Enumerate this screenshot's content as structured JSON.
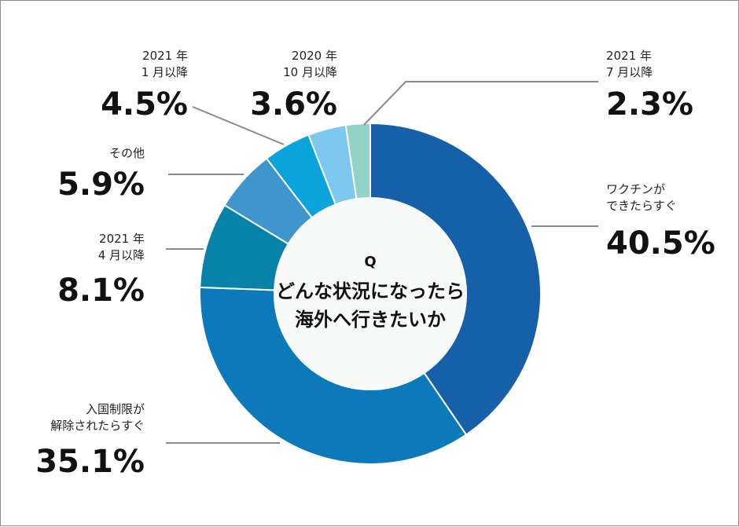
{
  "chart_data": {
    "type": "pie",
    "variant": "donut",
    "center_text": {
      "q": "Q",
      "line1": "どんな状況になったら",
      "line2": "海外へ行きたいか"
    },
    "slices": [
      {
        "label_lines": [
          "ワクチンが",
          "できたらすぐ"
        ],
        "value": 40.5,
        "value_label": "40.5%",
        "color": "#1560a8"
      },
      {
        "label_lines": [
          "入国制限が",
          "解除されたらすぐ"
        ],
        "value": 35.1,
        "value_label": "35.1%",
        "color": "#0b79ba"
      },
      {
        "label_lines": [
          "2021 年",
          "4 月以降"
        ],
        "value": 8.1,
        "value_label": "8.1%",
        "color": "#0782a8"
      },
      {
        "label_lines": [
          "その他"
        ],
        "value": 5.9,
        "value_label": "5.9%",
        "color": "#3e96cc"
      },
      {
        "label_lines": [
          "2021 年",
          "1 月以降"
        ],
        "value": 4.5,
        "value_label": "4.5%",
        "color": "#0ba3dc"
      },
      {
        "label_lines": [
          "2020 年",
          "10 月以降"
        ],
        "value": 3.6,
        "value_label": "3.6%",
        "color": "#7cc8ef"
      },
      {
        "label_lines": [
          "2021 年",
          "7 月以降"
        ],
        "value": 2.3,
        "value_label": "2.3%",
        "color": "#93d2c6"
      }
    ]
  }
}
